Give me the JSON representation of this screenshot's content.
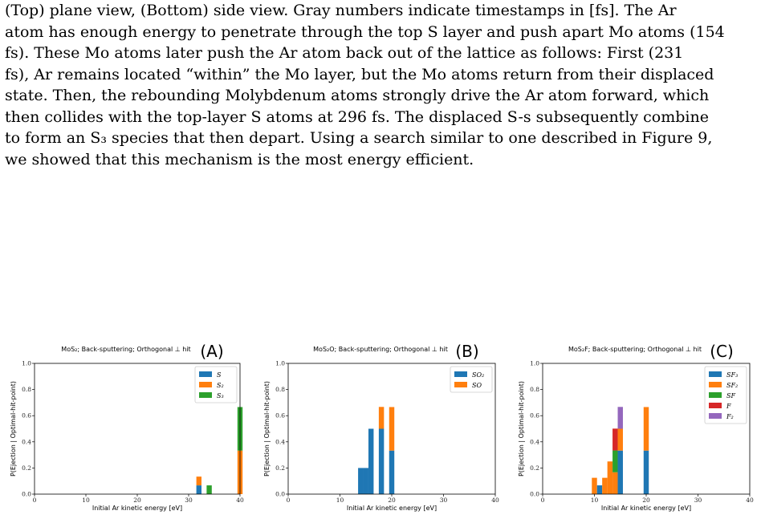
{
  "caption": {
    "lines": [
      "(Top) plane view, (Bottom) side view. Gray numbers indicate timestamps in [fs]. The Ar",
      "atom has enough energy to penetrate through the top S layer and push apart Mo atoms (154",
      "fs). These Mo atoms later push the Ar atom back out of the lattice as follows: First (231",
      "fs), Ar remains located “within” the Mo layer, but the Mo atoms return from their displaced",
      "state. Then, the rebounding Molybdenum atoms strongly drive the Ar atom forward, which",
      "then collides with the top-layer S atoms at 296 fs. The displaced S-s subsequently combine",
      "to form an S₃ species that then depart. Using a search similar to one described in Figure 9,",
      "we showed that this mechanism is the most energy efficient."
    ]
  },
  "chart_data": [
    {
      "type": "bar",
      "stacked": true,
      "panel_label": "(A)",
      "title": "MoS₂; Back-sputtering; Orthogonal ⊥ hit",
      "xlabel": "Initial Ar kinetic energy [eV]",
      "ylabel": "P(Ejection | Optimal-hit-point)",
      "xlim": [
        0,
        40
      ],
      "ylim": [
        0,
        1.0
      ],
      "xticks": [
        0,
        10,
        20,
        30,
        40
      ],
      "yticks": [
        0.0,
        0.2,
        0.4,
        0.6,
        0.8,
        1.0
      ],
      "legend": "top-right",
      "bar_width": 1,
      "x": [
        32,
        34,
        40
      ],
      "series": [
        {
          "name": "S",
          "color": "#1f77b4",
          "values": [
            0.067,
            0,
            0
          ]
        },
        {
          "name": "S₂",
          "color": "#ff7f0e",
          "values": [
            0.067,
            0,
            0.333
          ]
        },
        {
          "name": "S₃",
          "color": "#2ca02c",
          "values": [
            0,
            0.067,
            0.333
          ]
        }
      ]
    },
    {
      "type": "bar",
      "stacked": true,
      "panel_label": "(B)",
      "title": "MoS₂O; Back-sputtering; Orthogonal ⊥ hit",
      "xlabel": "Initial Ar kinetic energy [eV]",
      "ylabel": "P(Ejection | Optimal-hit-point)",
      "xlim": [
        0,
        40
      ],
      "ylim": [
        0,
        1.0
      ],
      "xticks": [
        0,
        10,
        20,
        30,
        40
      ],
      "yticks": [
        0.0,
        0.2,
        0.4,
        0.6,
        0.8,
        1.0
      ],
      "legend": "top-right",
      "bar_width": 1,
      "x": [
        14,
        15,
        16,
        18,
        20
      ],
      "series": [
        {
          "name": "SO₂",
          "color": "#1f77b4",
          "values": [
            0.2,
            0.2,
            0.5,
            0.5,
            0.333
          ]
        },
        {
          "name": "SO",
          "color": "#ff7f0e",
          "values": [
            0,
            0,
            0,
            0.167,
            0.333
          ]
        }
      ]
    },
    {
      "type": "bar",
      "stacked": true,
      "panel_label": "(C)",
      "title": "MoS₂F; Back-sputtering; Orthogonal ⊥ hit",
      "xlabel": "Initial Ar kinetic energy [eV]",
      "ylabel": "P(Ejection | Optimal-hit-point)",
      "xlim": [
        0,
        40
      ],
      "ylim": [
        0,
        1.0
      ],
      "xticks": [
        0,
        10,
        20,
        30,
        40
      ],
      "yticks": [
        0.0,
        0.2,
        0.4,
        0.6,
        0.8,
        1.0
      ],
      "legend": "top-right",
      "bar_width": 1,
      "x": [
        10,
        11,
        12,
        13,
        14,
        15,
        20
      ],
      "series": [
        {
          "name": "SF₃",
          "color": "#1f77b4",
          "values": [
            0,
            0.067,
            0,
            0,
            0,
            0.333,
            0.333
          ]
        },
        {
          "name": "SF₂",
          "color": "#ff7f0e",
          "values": [
            0.125,
            0,
            0.125,
            0.25,
            0.167,
            0.167,
            0.333
          ]
        },
        {
          "name": "SF",
          "color": "#2ca02c",
          "values": [
            0,
            0,
            0,
            0,
            0.167,
            0,
            0
          ]
        },
        {
          "name": "F",
          "color": "#d62728",
          "values": [
            0,
            0,
            0,
            0,
            0.167,
            0,
            0
          ]
        },
        {
          "name": "F₂",
          "color": "#9467bd",
          "values": [
            0,
            0,
            0,
            0,
            0,
            0.167,
            0
          ]
        }
      ]
    }
  ]
}
